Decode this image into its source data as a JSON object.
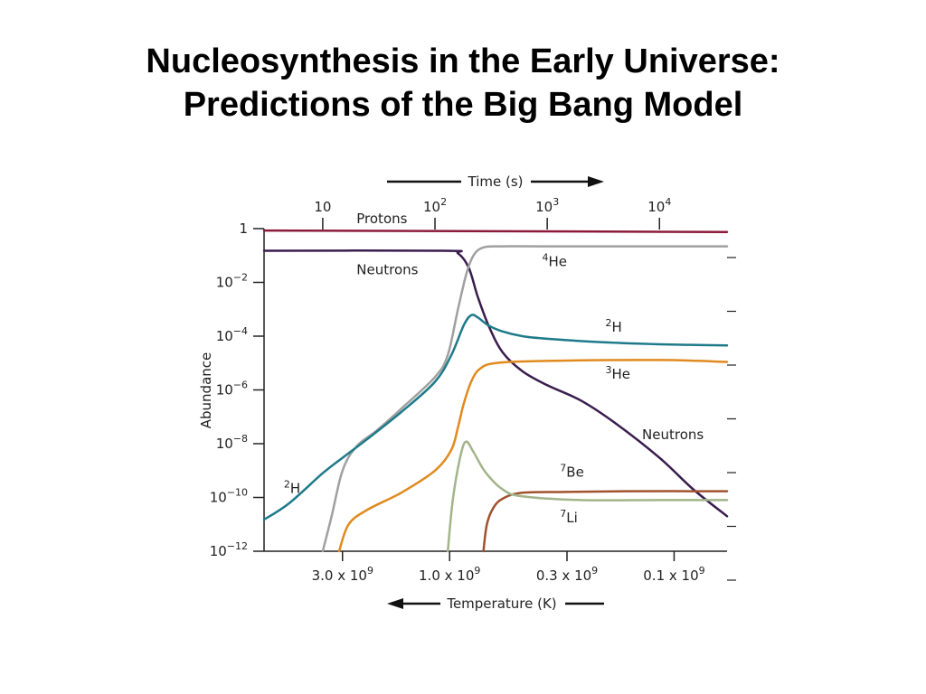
{
  "slide": {
    "title_line1": "Nucleosynthesis in the Early Universe:",
    "title_line2": "Predictions of the Big Bang Model"
  },
  "chart_data": {
    "type": "line",
    "title": "",
    "xlabel": "Temperature (K)",
    "x2label": "Time (s)",
    "ylabel": "Abundance",
    "y_scale": "log",
    "ylim": [
      1e-12,
      1
    ],
    "x_scale": "log",
    "time_range_s": [
      3,
      40000
    ],
    "time_ticks": [
      {
        "value": 10,
        "label": "10",
        "base": "10",
        "exp": ""
      },
      {
        "value": 100,
        "label": "10^2",
        "base": "10",
        "exp": "2"
      },
      {
        "value": 1000,
        "label": "10^3",
        "base": "10",
        "exp": "3"
      },
      {
        "value": 10000,
        "label": "10^4",
        "base": "10",
        "exp": "4"
      }
    ],
    "temperature_ticks": [
      {
        "time_s": 15,
        "base": "3.0 x 10",
        "exp": "9"
      },
      {
        "time_s": 135,
        "base": "1.0 x 10",
        "exp": "9"
      },
      {
        "time_s": 1500,
        "base": "0.3 x 10",
        "exp": "9"
      },
      {
        "time_s": 13500,
        "base": "0.1 x 10",
        "exp": "9"
      }
    ],
    "y_ticks": [
      {
        "value": 1,
        "base": "1",
        "exp": ""
      },
      {
        "value": 0.01,
        "base": "10",
        "exp": "−2"
      },
      {
        "value": 0.0001,
        "base": "10",
        "exp": "−4"
      },
      {
        "value": 1e-06,
        "base": "10",
        "exp": "−6"
      },
      {
        "value": 1e-08,
        "base": "10",
        "exp": "−8"
      },
      {
        "value": 1e-10,
        "base": "10",
        "exp": "−10"
      },
      {
        "value": 1e-12,
        "base": "10",
        "exp": "−12"
      }
    ],
    "grid": false,
    "series": [
      {
        "name": "Protons",
        "color": "#8b1a3a",
        "points": [
          [
            3,
            0.85
          ],
          [
            40000,
            0.75
          ]
        ]
      },
      {
        "name": "Neutrons",
        "color": "#3a1d4f",
        "points": [
          [
            3,
            0.15
          ],
          [
            120,
            0.15
          ],
          [
            160,
            0.12
          ],
          [
            200,
            0.035
          ],
          [
            240,
            0.003
          ],
          [
            300,
            0.00025
          ],
          [
            400,
            2.5e-05
          ],
          [
            600,
            5e-06
          ],
          [
            1000,
            1.5e-06
          ],
          [
            2000,
            4e-07
          ],
          [
            4000,
            6e-08
          ],
          [
            10000,
            3e-09
          ],
          [
            20000,
            2e-10
          ],
          [
            40000,
            2e-11
          ]
        ]
      },
      {
        "name": "4He",
        "color": "#a0a0a0",
        "points": [
          [
            10,
            1e-12
          ],
          [
            12,
            2e-11
          ],
          [
            15,
            1e-09
          ],
          [
            20,
            8e-09
          ],
          [
            30,
            3e-08
          ],
          [
            50,
            2e-07
          ],
          [
            100,
            3e-06
          ],
          [
            130,
            2e-05
          ],
          [
            160,
            0.001
          ],
          [
            190,
            0.02
          ],
          [
            220,
            0.1
          ],
          [
            270,
            0.2
          ],
          [
            400,
            0.22
          ],
          [
            1000,
            0.22
          ],
          [
            40000,
            0.22
          ]
        ]
      },
      {
        "name": "2H",
        "color": "#1e7a8a",
        "points": [
          [
            3,
            1.5e-11
          ],
          [
            5,
            6e-11
          ],
          [
            10,
            8e-10
          ],
          [
            15,
            3e-09
          ],
          [
            25,
            1.5e-08
          ],
          [
            50,
            1.5e-07
          ],
          [
            100,
            2e-06
          ],
          [
            140,
            2e-05
          ],
          [
            180,
            0.00025
          ],
          [
            210,
            0.0006
          ],
          [
            240,
            0.0005
          ],
          [
            300,
            0.00025
          ],
          [
            400,
            0.00015
          ],
          [
            600,
            0.0001
          ],
          [
            1000,
            8e-05
          ],
          [
            3000,
            6e-05
          ],
          [
            10000,
            5e-05
          ],
          [
            40000,
            4.5e-05
          ]
        ]
      },
      {
        "name": "3He",
        "color": "#e08a1e",
        "points": [
          [
            14,
            1e-12
          ],
          [
            17,
            1e-11
          ],
          [
            25,
            3.5e-11
          ],
          [
            50,
            1.5e-10
          ],
          [
            100,
            1e-09
          ],
          [
            140,
            6e-09
          ],
          [
            160,
            4e-08
          ],
          [
            180,
            3e-07
          ],
          [
            210,
            2e-06
          ],
          [
            250,
            6e-06
          ],
          [
            350,
            1e-05
          ],
          [
            1000,
            1.2e-05
          ],
          [
            10000,
            1.3e-05
          ],
          [
            40000,
            1.1e-05
          ]
        ]
      },
      {
        "name": "7Be",
        "color": "#a0522d",
        "points": [
          [
            270,
            1e-12
          ],
          [
            290,
            1e-11
          ],
          [
            330,
            4e-11
          ],
          [
            400,
            9e-11
          ],
          [
            600,
            1.5e-10
          ],
          [
            1500,
            1.6e-10
          ],
          [
            5000,
            1.7e-10
          ],
          [
            40000,
            1.7e-10
          ]
        ]
      },
      {
        "name": "7Li",
        "color": "#a2b48a",
        "points": [
          [
            130,
            1e-12
          ],
          [
            145,
            1e-10
          ],
          [
            170,
            4e-09
          ],
          [
            190,
            1.2e-08
          ],
          [
            220,
            5e-09
          ],
          [
            280,
            9e-10
          ],
          [
            400,
            2e-10
          ],
          [
            600,
            1.1e-10
          ],
          [
            2000,
            8e-11
          ],
          [
            10000,
            8e-11
          ],
          [
            40000,
            8e-11
          ]
        ]
      }
    ],
    "annotations": [
      {
        "text": "Protons",
        "anchor_time_s": 20,
        "anchor_abundance": 1.6
      },
      {
        "text": "Neutrons",
        "anchor_time_s": 20,
        "anchor_abundance": 0.02
      },
      {
        "text": "4He",
        "anchor_time_s": 900,
        "anchor_abundance": 0.04
      },
      {
        "text": "2H",
        "anchor_time_s": 3300,
        "anchor_abundance": 0.00015
      },
      {
        "text": "3He",
        "anchor_time_s": 3300,
        "anchor_abundance": 2.6e-06
      },
      {
        "text": "Neutrons",
        "anchor_time_s": 7000,
        "anchor_abundance": 1.5e-08
      },
      {
        "text": "7Be",
        "anchor_time_s": 1300,
        "anchor_abundance": 6e-10
      },
      {
        "text": "7Li",
        "anchor_time_s": 1300,
        "anchor_abundance": 1.2e-11
      },
      {
        "text": "2H",
        "anchor_time_s": 4.5,
        "anchor_abundance": 1.5e-10
      }
    ]
  }
}
